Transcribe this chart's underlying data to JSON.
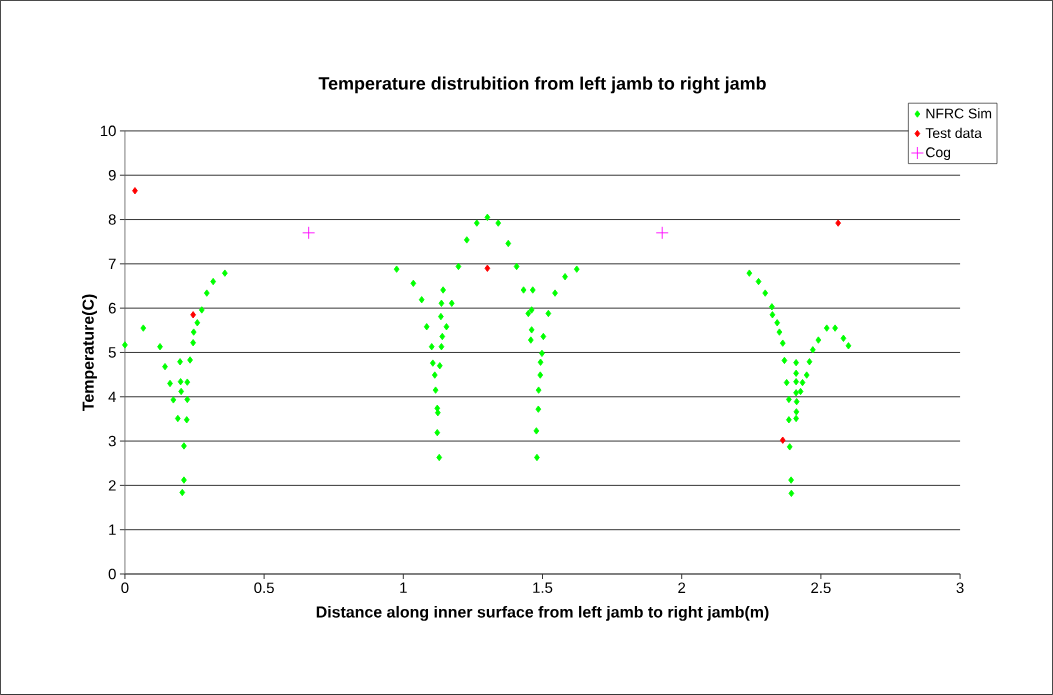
{
  "chart_data": {
    "type": "scatter",
    "title": "Temperature distrubition from left jamb to right jamb",
    "xlabel": "Distance along inner surface from left jamb to right jamb(m)",
    "ylabel": "Temperature(C)",
    "xlim": [
      0,
      3
    ],
    "xticks": [
      0,
      0.5,
      1,
      1.5,
      2,
      2.5,
      3
    ],
    "ylim": [
      0,
      10
    ],
    "yticks": [
      0,
      1,
      2,
      3,
      4,
      5,
      6,
      7,
      8,
      9,
      10
    ],
    "grid": "y",
    "legend": "top right",
    "series": [
      {
        "name": "NFRC Sim",
        "color": "#00ff00",
        "marker": "diamond",
        "x": [
          0,
          0.066,
          0.126,
          0.144,
          0.162,
          0.174,
          0.19,
          0.198,
          0.2,
          0.202,
          0.212,
          0.212,
          0.206,
          0.222,
          0.224,
          0.224,
          0.234,
          0.245,
          0.247,
          0.26,
          0.276,
          0.294,
          0.317,
          0.359,
          0.976,
          1.036,
          1.066,
          1.084,
          1.102,
          1.106,
          1.113,
          1.116,
          1.122,
          1.124,
          1.122,
          1.129,
          1.131,
          1.137,
          1.143,
          1.137,
          1.135,
          1.14,
          1.155,
          1.174,
          1.198,
          1.228,
          1.264,
          1.302,
          1.341,
          1.377,
          1.407,
          1.432,
          1.449,
          1.458,
          1.465,
          1.461,
          1.461,
          1.48,
          1.478,
          1.485,
          1.486,
          1.492,
          1.493,
          1.498,
          1.503,
          1.521,
          1.545,
          1.581,
          1.623,
          2.243,
          2.276,
          2.3,
          2.324,
          2.326,
          2.343,
          2.351,
          2.363,
          2.369,
          2.377,
          2.385,
          2.385,
          2.388,
          2.393,
          2.394,
          2.411,
          2.411,
          2.411,
          2.411,
          2.413,
          2.412,
          2.411,
          2.427,
          2.434,
          2.449,
          2.459,
          2.471,
          2.491,
          2.521,
          2.551,
          2.581,
          2.599
        ],
        "values": [
          5.17,
          5.55,
          5.13,
          4.68,
          4.3,
          3.93,
          3.51,
          4.79,
          4.34,
          4.12,
          2.89,
          2.12,
          1.84,
          3.48,
          3.94,
          4.33,
          4.83,
          5.22,
          5.46,
          5.67,
          5.96,
          6.34,
          6.6,
          6.79,
          6.88,
          6.56,
          6.19,
          5.58,
          5.13,
          4.76,
          4.49,
          4.15,
          3.74,
          3.64,
          3.19,
          2.63,
          4.7,
          5.13,
          6.41,
          6.11,
          5.81,
          5.36,
          5.58,
          6.11,
          6.94,
          7.54,
          7.92,
          8.05,
          7.92,
          7.46,
          6.94,
          6.41,
          5.88,
          5.28,
          6.41,
          5.96,
          5.51,
          2.63,
          3.23,
          3.72,
          4.15,
          4.49,
          4.78,
          4.98,
          5.36,
          5.88,
          6.34,
          6.71,
          6.88,
          6.79,
          6.6,
          6.34,
          6.03,
          5.85,
          5.67,
          5.46,
          5.21,
          4.82,
          4.32,
          3.94,
          3.48,
          2.87,
          2.12,
          1.82,
          4.77,
          4.53,
          4.34,
          4.09,
          3.89,
          3.66,
          3.51,
          4.12,
          4.32,
          4.49,
          4.79,
          5.06,
          5.28,
          5.55,
          5.55,
          5.32,
          5.15
        ]
      },
      {
        "name": "Test data",
        "color": "#ff0000",
        "marker": "diamond",
        "x": [
          0.036,
          0.245,
          1.302,
          2.363,
          2.562
        ],
        "values": [
          8.65,
          5.85,
          6.9,
          3.02,
          7.92
        ]
      },
      {
        "name": "Cog",
        "color": "#ff00ff",
        "marker": "cross",
        "x": [
          0.66,
          1.93
        ],
        "values": [
          7.7,
          7.7
        ]
      }
    ]
  }
}
